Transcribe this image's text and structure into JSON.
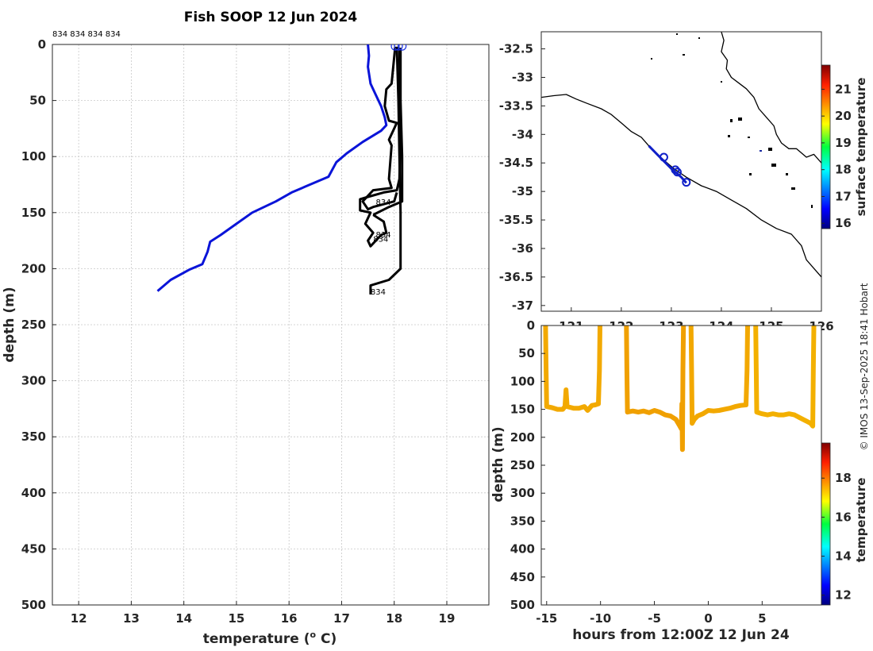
{
  "figure": {
    "title": "Fish SOOP 12 Jun 2024",
    "copyright": "© IMOS 13-Sep-2025 18:41 Hobart"
  },
  "chart_data": [
    {
      "id": "profile",
      "type": "line",
      "title": "Fish SOOP 12 Jun 2024",
      "xlabel": "temperature (",
      "xlabel_sup": "o",
      "xlabel_tail": " C)",
      "ylabel": "depth (m)",
      "xlim": [
        11.5,
        19.8
      ],
      "ylim": [
        0,
        500
      ],
      "y_reversed": true,
      "grid": true,
      "xticks": [
        12,
        13,
        14,
        15,
        16,
        17,
        18,
        19
      ],
      "yticks": [
        0,
        50,
        100,
        150,
        200,
        250,
        300,
        350,
        400,
        450,
        500
      ],
      "top_annotation": "834 834 834 834",
      "profile_labels": [
        {
          "text": "834",
          "temp": 17.65,
          "depth": 143
        },
        {
          "text": "834",
          "temp": 17.65,
          "depth": 172
        },
        {
          "text": "834",
          "temp": 17.6,
          "depth": 176
        },
        {
          "text": "834",
          "temp": 17.55,
          "depth": 223
        }
      ],
      "series": [
        {
          "name": "climatology",
          "color": "#0a14d8",
          "points": [
            [
              17.5,
              0
            ],
            [
              17.52,
              10
            ],
            [
              17.5,
              20
            ],
            [
              17.55,
              35
            ],
            [
              17.65,
              45
            ],
            [
              17.75,
              55
            ],
            [
              17.82,
              65
            ],
            [
              17.85,
              72
            ],
            [
              17.75,
              77
            ],
            [
              17.4,
              87
            ],
            [
              17.1,
              97
            ],
            [
              16.9,
              105
            ],
            [
              16.75,
              118
            ],
            [
              16.55,
              122
            ],
            [
              16.3,
              127
            ],
            [
              16.05,
              132
            ],
            [
              15.75,
              140
            ],
            [
              15.3,
              150
            ],
            [
              15.0,
              160
            ],
            [
              14.7,
              170
            ],
            [
              14.5,
              176
            ],
            [
              14.45,
              185
            ],
            [
              14.35,
              196
            ],
            [
              14.1,
              201
            ],
            [
              13.75,
              210
            ],
            [
              13.5,
              220
            ]
          ]
        },
        {
          "name": "profile 834 main",
          "color": "#000000",
          "points": [
            [
              18.05,
              2
            ],
            [
              18.08,
              50
            ],
            [
              18.1,
              100
            ],
            [
              18.12,
              150
            ],
            [
              18.12,
              200
            ],
            [
              17.9,
              210
            ],
            [
              17.55,
              215
            ],
            [
              17.55,
              223
            ]
          ]
        },
        {
          "name": "profile 834 down",
          "color": "#000000",
          "points": [
            [
              18.1,
              3
            ],
            [
              18.12,
              80
            ],
            [
              18.1,
              120
            ],
            [
              18.05,
              130
            ],
            [
              17.8,
              132
            ],
            [
              17.5,
              136
            ],
            [
              17.35,
              138
            ],
            [
              17.35,
              148
            ],
            [
              17.55,
              150
            ],
            [
              17.45,
              160
            ],
            [
              17.6,
              168
            ],
            [
              17.5,
              175
            ],
            [
              17.55,
              180
            ],
            [
              17.75,
              170
            ],
            [
              17.85,
              168
            ],
            [
              17.8,
              158
            ],
            [
              17.6,
              152
            ]
          ]
        },
        {
          "name": "profile 834 up",
          "color": "#000000",
          "points": [
            [
              17.6,
              152
            ],
            [
              17.9,
              145
            ],
            [
              18.15,
              140
            ],
            [
              18.15,
              100
            ],
            [
              18.12,
              50
            ],
            [
              18.12,
              3
            ]
          ]
        },
        {
          "name": "profile 834 loop",
          "color": "#000000",
          "points": [
            [
              18.02,
              2
            ],
            [
              17.95,
              35
            ],
            [
              17.85,
              40
            ],
            [
              17.82,
              55
            ],
            [
              17.9,
              68
            ],
            [
              18.05,
              70
            ],
            [
              17.9,
              85
            ],
            [
              17.95,
              90
            ],
            [
              17.9,
              120
            ],
            [
              17.95,
              128
            ],
            [
              17.6,
              130
            ],
            [
              17.4,
              140
            ],
            [
              17.5,
              147
            ],
            [
              17.6,
              145
            ],
            [
              18.0,
              140
            ],
            [
              18.05,
              132
            ]
          ]
        }
      ],
      "surface_markers": [
        18.02,
        18.08,
        18.15
      ]
    },
    {
      "id": "map",
      "type": "scatter",
      "xlim": [
        120.4,
        126.0
      ],
      "ylim": [
        -37.1,
        -32.2
      ],
      "xticks": [
        121,
        122,
        123,
        124,
        125,
        126
      ],
      "xtick_labels": [
        "121",
        "122",
        "123",
        "124",
        "125",
        "126"
      ],
      "yticks": [
        -32.5,
        -33,
        -33.5,
        -34,
        -34.5,
        -35,
        -35.5,
        -36,
        -36.5,
        -37
      ],
      "ytick_labels": [
        "-32.5",
        "-33",
        "-33.5",
        "-34",
        "-34.5",
        "-35",
        "-35.5",
        "-36",
        "-36.5",
        "-37"
      ],
      "track_color": "#1020c8",
      "track": [
        [
          122.55,
          -34.2
        ],
        [
          122.75,
          -34.38
        ],
        [
          123.0,
          -34.6
        ],
        [
          123.2,
          -34.75
        ],
        [
          123.3,
          -34.85
        ]
      ],
      "stations": [
        [
          122.85,
          -34.4
        ],
        [
          123.08,
          -34.62
        ],
        [
          123.12,
          -34.66
        ],
        [
          123.3,
          -34.84
        ]
      ],
      "shelf_contour": [
        [
          120.4,
          -33.35
        ],
        [
          120.65,
          -33.32
        ],
        [
          120.9,
          -33.3
        ],
        [
          121.1,
          -33.38
        ],
        [
          121.3,
          -33.45
        ],
        [
          121.6,
          -33.55
        ],
        [
          121.8,
          -33.65
        ],
        [
          122.0,
          -33.8
        ],
        [
          122.2,
          -33.95
        ],
        [
          122.4,
          -34.05
        ],
        [
          122.6,
          -34.25
        ],
        [
          122.85,
          -34.45
        ],
        [
          123.05,
          -34.6
        ],
        [
          123.3,
          -34.75
        ],
        [
          123.6,
          -34.9
        ],
        [
          123.9,
          -35.0
        ],
        [
          124.2,
          -35.15
        ],
        [
          124.5,
          -35.3
        ],
        [
          124.8,
          -35.5
        ],
        [
          125.1,
          -35.65
        ],
        [
          125.4,
          -35.75
        ],
        [
          125.6,
          -35.95
        ],
        [
          125.7,
          -36.2
        ],
        [
          125.85,
          -36.35
        ],
        [
          126.0,
          -36.5
        ]
      ],
      "coast": [
        [
          124.0,
          -32.2
        ],
        [
          124.05,
          -32.35
        ],
        [
          124.0,
          -32.55
        ],
        [
          124.12,
          -32.7
        ],
        [
          124.1,
          -32.85
        ],
        [
          124.2,
          -33.0
        ],
        [
          124.35,
          -33.1
        ],
        [
          124.5,
          -33.2
        ],
        [
          124.65,
          -33.35
        ],
        [
          124.75,
          -33.55
        ],
        [
          124.9,
          -33.7
        ],
        [
          125.05,
          -33.85
        ],
        [
          125.1,
          -34.0
        ],
        [
          125.2,
          -34.15
        ],
        [
          125.35,
          -34.25
        ],
        [
          125.5,
          -34.25
        ],
        [
          125.7,
          -34.4
        ],
        [
          125.85,
          -34.35
        ],
        [
          126.0,
          -34.5
        ]
      ],
      "colorbar": {
        "label": "surface temperature",
        "ticks": [
          16,
          17,
          18,
          19,
          20,
          21
        ],
        "range": [
          15.8,
          21.9
        ]
      }
    },
    {
      "id": "timeseries",
      "type": "scatter",
      "xlabel": "hours from 12:00Z 12 Jun 24",
      "ylabel": "depth (m)",
      "xlim": [
        -15.5,
        10.5
      ],
      "ylim": [
        0,
        500
      ],
      "y_reversed": true,
      "xticks": [
        -15,
        -10,
        -5,
        0,
        5
      ],
      "yticks": [
        0,
        50,
        100,
        150,
        200,
        250,
        300,
        350,
        400,
        450,
        500
      ],
      "series": [
        {
          "name": "tow 1",
          "color": "#f2a900",
          "points": [
            [
              -15.1,
              0
            ],
            [
              -15.05,
              80
            ],
            [
              -15.0,
              145
            ],
            [
              -14.5,
              147
            ],
            [
              -14.0,
              150
            ],
            [
              -13.5,
              150
            ],
            [
              -13.3,
              145
            ],
            [
              -13.2,
              115
            ],
            [
              -13.1,
              145
            ],
            [
              -12.5,
              148
            ],
            [
              -12.0,
              148
            ],
            [
              -11.5,
              145
            ],
            [
              -11.2,
              152
            ],
            [
              -10.8,
              143
            ],
            [
              -10.5,
              142
            ],
            [
              -10.2,
              140
            ],
            [
              -10.1,
              80
            ],
            [
              -10.05,
              0
            ]
          ]
        },
        {
          "name": "tow 2",
          "color": "#f0a000",
          "points": [
            [
              -7.6,
              0
            ],
            [
              -7.55,
              80
            ],
            [
              -7.5,
              155
            ],
            [
              -7.0,
              153
            ],
            [
              -6.5,
              155
            ],
            [
              -6.0,
              153
            ],
            [
              -5.5,
              156
            ],
            [
              -5.0,
              152
            ],
            [
              -4.5,
              155
            ],
            [
              -4.0,
              160
            ],
            [
              -3.5,
              162
            ],
            [
              -3.0,
              168
            ],
            [
              -2.7,
              178
            ],
            [
              -2.5,
              185
            ],
            [
              -2.45,
              140
            ],
            [
              -2.4,
              222
            ],
            [
              -2.35,
              80
            ],
            [
              -2.3,
              0
            ]
          ]
        },
        {
          "name": "tow 3",
          "color": "#f2a800",
          "points": [
            [
              -1.6,
              0
            ],
            [
              -1.55,
              80
            ],
            [
              -1.5,
              175
            ],
            [
              -1.3,
              168
            ],
            [
              -1.0,
              162
            ],
            [
              -0.5,
              158
            ],
            [
              0.0,
              152
            ],
            [
              0.5,
              153
            ],
            [
              1.0,
              152
            ],
            [
              1.5,
              150
            ],
            [
              2.0,
              148
            ],
            [
              2.5,
              145
            ],
            [
              3.0,
              143
            ],
            [
              3.5,
              142
            ],
            [
              3.6,
              80
            ],
            [
              3.65,
              0
            ]
          ]
        },
        {
          "name": "tow 4",
          "color": "#f3b000",
          "points": [
            [
              4.4,
              0
            ],
            [
              4.45,
              80
            ],
            [
              4.5,
              155
            ],
            [
              5.0,
              158
            ],
            [
              5.5,
              160
            ],
            [
              6.0,
              158
            ],
            [
              6.5,
              160
            ],
            [
              7.0,
              160
            ],
            [
              7.5,
              158
            ],
            [
              8.0,
              160
            ],
            [
              8.5,
              165
            ],
            [
              9.0,
              170
            ],
            [
              9.5,
              175
            ],
            [
              9.7,
              180
            ],
            [
              9.75,
              80
            ],
            [
              9.8,
              0
            ]
          ]
        }
      ],
      "colorbar": {
        "label": "temperature",
        "ticks": [
          12,
          14,
          16,
          18
        ],
        "range": [
          11.5,
          19.8
        ]
      }
    }
  ]
}
